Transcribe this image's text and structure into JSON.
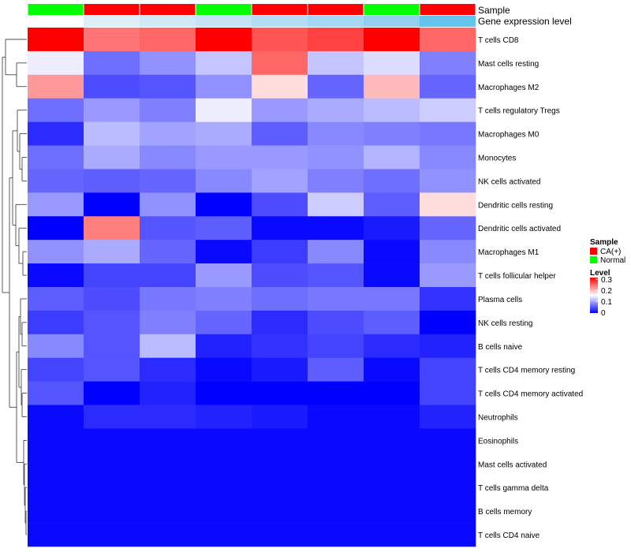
{
  "chart_data": {
    "type": "heatmap",
    "annotation_titles": {
      "sample": "Sample",
      "gene": "Gene expression level"
    },
    "column_samples": [
      "Normal",
      "CA(+)",
      "CA(+)",
      "Normal",
      "CA(+)",
      "CA(+)",
      "Normal",
      "CA(+)"
    ],
    "sample_colors": {
      "CA(+)": "#ff0000",
      "Normal": "#00ff00"
    },
    "gene_expression_colors": [
      "#ffffff",
      "#ddeff9",
      "#cfe9f7",
      "#c4e4f6",
      "#b2ddf3",
      "#a4d7f1",
      "#92cfef",
      "#64c4ec"
    ],
    "rows": [
      "T cells CD8",
      "Mast cells resting",
      "Macrophages M2",
      "T cells regulatory  Tregs",
      "Macrophages M0",
      "Monocytes",
      "NK cells activated",
      "Dendritic cells resting",
      "Dendritic cells activated",
      "Macrophages M1",
      "T cells follicular helper",
      "Plasma cells",
      "NK cells resting",
      "B cells naive",
      "T cells CD4 memory resting",
      "T cells CD4 memory activated",
      "Neutrophils",
      "Eosinophils",
      "Mast cells activated",
      "T cells gamma delta",
      "B cells memory",
      "T cells CD4 naive"
    ],
    "values": [
      [
        0.3,
        0.232,
        0.24,
        0.3,
        0.25,
        0.262,
        0.3,
        0.24
      ],
      [
        0.14,
        0.065,
        0.085,
        0.115,
        0.24,
        0.115,
        0.13,
        0.075
      ],
      [
        0.21,
        0.045,
        0.05,
        0.085,
        0.17,
        0.06,
        0.19,
        0.06
      ],
      [
        0.065,
        0.09,
        0.075,
        0.14,
        0.09,
        0.1,
        0.11,
        0.12
      ],
      [
        0.025,
        0.11,
        0.095,
        0.1,
        0.055,
        0.08,
        0.075,
        0.07
      ],
      [
        0.065,
        0.1,
        0.08,
        0.09,
        0.09,
        0.085,
        0.105,
        0.08
      ],
      [
        0.06,
        0.055,
        0.06,
        0.08,
        0.095,
        0.075,
        0.065,
        0.085
      ],
      [
        0.09,
        0.0,
        0.085,
        0.0,
        0.045,
        0.12,
        0.055,
        0.17
      ],
      [
        0.0,
        0.225,
        0.05,
        0.055,
        0.005,
        0.005,
        0.015,
        0.06
      ],
      [
        0.085,
        0.1,
        0.06,
        0.005,
        0.035,
        0.08,
        0.005,
        0.08
      ],
      [
        0.005,
        0.04,
        0.04,
        0.09,
        0.045,
        0.05,
        0.005,
        0.09
      ],
      [
        0.055,
        0.045,
        0.07,
        0.075,
        0.065,
        0.07,
        0.07,
        0.03
      ],
      [
        0.035,
        0.05,
        0.075,
        0.06,
        0.025,
        0.045,
        0.055,
        0.0
      ],
      [
        0.08,
        0.05,
        0.11,
        0.02,
        0.03,
        0.04,
        0.025,
        0.02
      ],
      [
        0.04,
        0.05,
        0.025,
        0.005,
        0.015,
        0.055,
        0.005,
        0.04
      ],
      [
        0.05,
        0.0,
        0.02,
        0.0,
        0.0,
        0.0,
        0.0,
        0.04
      ],
      [
        0.005,
        0.025,
        0.025,
        0.02,
        0.015,
        0.005,
        0.005,
        0.02
      ],
      [
        0.005,
        0.005,
        0.005,
        0.005,
        0.005,
        0.005,
        0.005,
        0.005
      ],
      [
        0.005,
        0.005,
        0.005,
        0.005,
        0.005,
        0.005,
        0.005,
        0.005
      ],
      [
        0.005,
        0.005,
        0.005,
        0.005,
        0.005,
        0.005,
        0.005,
        0.005
      ],
      [
        0.005,
        0.005,
        0.005,
        0.005,
        0.005,
        0.005,
        0.005,
        0.005
      ],
      [
        0.005,
        0.005,
        0.005,
        0.005,
        0.005,
        0.005,
        0.005,
        0.005
      ]
    ],
    "color_scale": {
      "min": 0,
      "max": 0.3,
      "low": "#0000ff",
      "mid": "#ffffff",
      "mid_value": 0.15,
      "high": "#ff0000"
    },
    "legend": {
      "sample_title": "Sample",
      "sample_entries": [
        "CA(+)",
        "Normal"
      ],
      "level_title": "Level",
      "level_ticks": [
        "0.3",
        "0.2",
        "0.1",
        "0"
      ],
      "placement": "right"
    },
    "row_dendrogram": true
  }
}
